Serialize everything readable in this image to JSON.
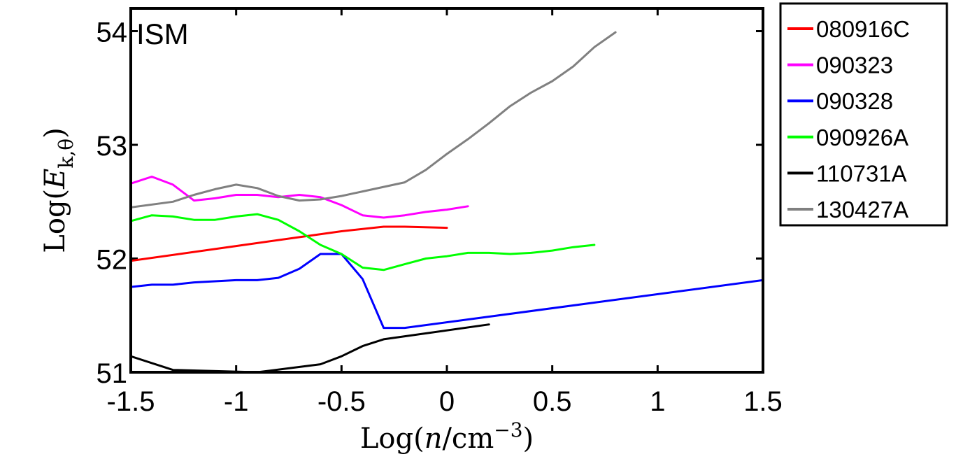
{
  "chart_data": {
    "type": "line",
    "panel_label": "ISM",
    "xlabel": "Log(n/cm⁻³)",
    "ylabel": "Log(E_k,θ)",
    "xlim": [
      -1.5,
      1.5
    ],
    "ylim": [
      51,
      54.2
    ],
    "xticks": [
      -1.5,
      -1,
      -0.5,
      0,
      0.5,
      1,
      1.5
    ],
    "xtick_labels": [
      "-1.5",
      "-1",
      "-0.5",
      "0",
      "0.5",
      "1",
      "1.5"
    ],
    "yticks": [
      51,
      52,
      53,
      54
    ],
    "ytick_labels": [
      "51",
      "52",
      "53",
      "54"
    ],
    "grid": false,
    "legend_position": "outside-right-top",
    "series": [
      {
        "name": "080916C",
        "color": "#ff0000",
        "x": [
          -1.5,
          -1.0,
          -0.5,
          -0.3,
          -0.2,
          0.0
        ],
        "y": [
          51.98,
          52.11,
          52.24,
          52.28,
          52.28,
          52.27
        ]
      },
      {
        "name": "090323",
        "color": "#ff00ff",
        "x": [
          -1.5,
          -1.4,
          -1.3,
          -1.2,
          -1.1,
          -1.0,
          -0.9,
          -0.8,
          -0.7,
          -0.6,
          -0.5,
          -0.4,
          -0.3,
          -0.2,
          -0.1,
          0.0,
          0.1
        ],
        "y": [
          52.66,
          52.72,
          52.65,
          52.51,
          52.53,
          52.56,
          52.56,
          52.54,
          52.56,
          52.54,
          52.47,
          52.38,
          52.36,
          52.38,
          52.41,
          52.43,
          52.46
        ]
      },
      {
        "name": "090328",
        "color": "#0000ff",
        "x": [
          -1.5,
          -1.4,
          -1.3,
          -1.2,
          -1.1,
          -1.0,
          -0.9,
          -0.8,
          -0.7,
          -0.6,
          -0.5,
          -0.4,
          -0.3,
          -0.2,
          1.5
        ],
        "y": [
          51.75,
          51.77,
          51.77,
          51.79,
          51.8,
          51.81,
          51.81,
          51.83,
          51.91,
          52.04,
          52.04,
          51.82,
          51.39,
          51.39,
          51.81
        ]
      },
      {
        "name": "090926A",
        "color": "#00ff00",
        "x": [
          -1.5,
          -1.4,
          -1.3,
          -1.2,
          -1.1,
          -1.0,
          -0.9,
          -0.8,
          -0.7,
          -0.6,
          -0.5,
          -0.4,
          -0.3,
          -0.2,
          -0.1,
          0.0,
          0.1,
          0.2,
          0.3,
          0.4,
          0.5,
          0.6,
          0.7
        ],
        "y": [
          52.33,
          52.38,
          52.37,
          52.34,
          52.34,
          52.37,
          52.39,
          52.34,
          52.24,
          52.12,
          52.04,
          51.92,
          51.9,
          51.95,
          52.0,
          52.02,
          52.05,
          52.05,
          52.04,
          52.05,
          52.07,
          52.1,
          52.12
        ]
      },
      {
        "name": "110731A",
        "color": "#000000",
        "x": [
          -1.5,
          -1.3,
          -0.9,
          -0.6,
          -0.5,
          -0.4,
          -0.3,
          0.2
        ],
        "y": [
          51.14,
          51.02,
          51.0,
          51.07,
          51.14,
          51.23,
          51.29,
          51.42
        ]
      },
      {
        "name": "130427A",
        "color": "#808080",
        "x": [
          -1.5,
          -1.3,
          -1.2,
          -1.1,
          -1.0,
          -0.9,
          -0.8,
          -0.7,
          -0.6,
          -0.5,
          -0.4,
          -0.3,
          -0.2,
          -0.1,
          0.0,
          0.1,
          0.2,
          0.3,
          0.4,
          0.5,
          0.6,
          0.7,
          0.8
        ],
        "y": [
          52.45,
          52.5,
          52.56,
          52.61,
          52.65,
          52.62,
          52.55,
          52.51,
          52.52,
          52.55,
          52.59,
          52.63,
          52.67,
          52.78,
          52.92,
          53.05,
          53.19,
          53.34,
          53.46,
          53.56,
          53.69,
          53.86,
          53.99
        ]
      }
    ]
  }
}
